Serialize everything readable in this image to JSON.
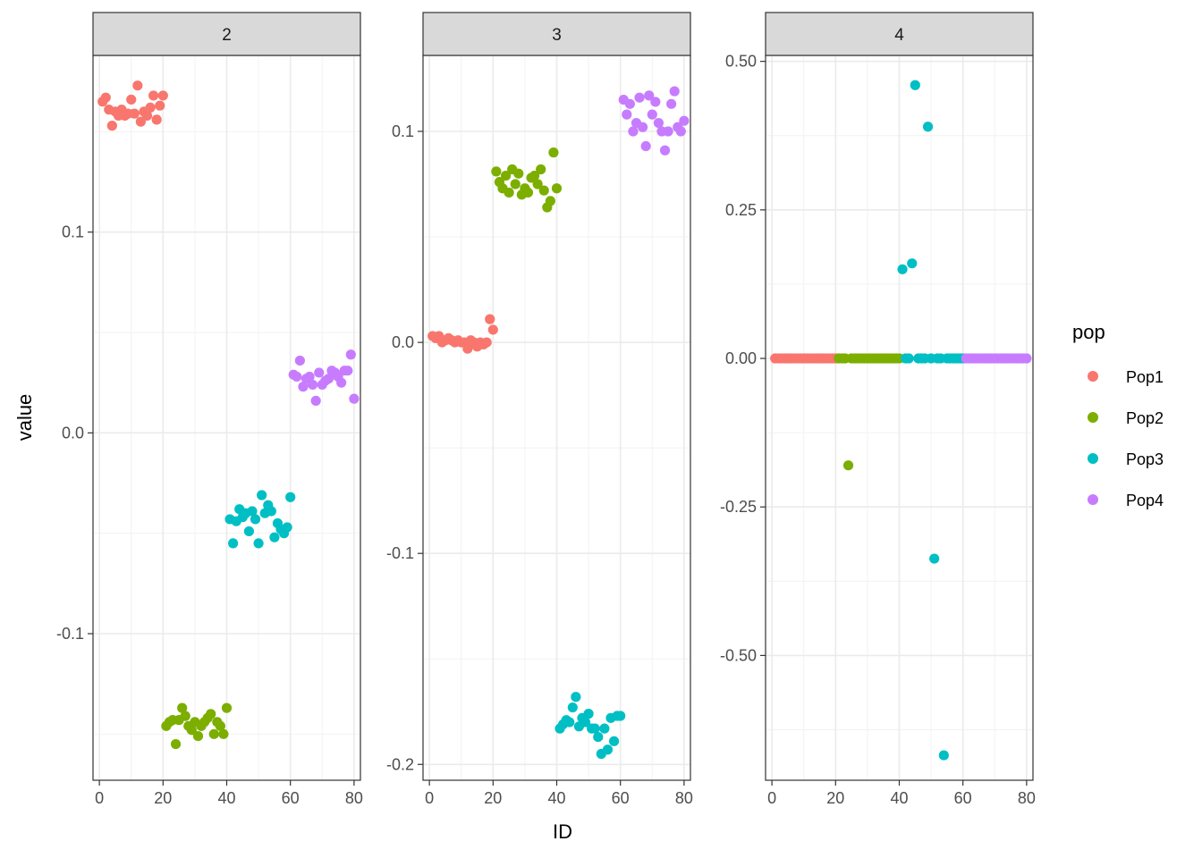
{
  "chart_data": {
    "type": "scatter",
    "facet_var": "variable",
    "xlabel": "ID",
    "ylabel": "value",
    "legend": {
      "title": "pop",
      "position": "right",
      "entries": [
        {
          "name": "Pop1",
          "color": "#F8766D"
        },
        {
          "name": "Pop2",
          "color": "#7CAE00"
        },
        {
          "name": "Pop3",
          "color": "#00BFC4"
        },
        {
          "name": "Pop4",
          "color": "#C77CFF"
        }
      ]
    },
    "xlim": [
      -2,
      82
    ],
    "x_ticks": [
      0,
      20,
      40,
      60,
      80
    ],
    "x_tick_labels": [
      "0",
      "20",
      "40",
      "60",
      "80"
    ],
    "panels": [
      {
        "strip": "2",
        "ylim": [
          -0.173,
          0.188
        ],
        "y_ticks": [
          0.1,
          0.0,
          -0.1
        ],
        "y_tick_labels": [
          "0.1",
          "0.0",
          "-0.1"
        ],
        "series": [
          {
            "name": "Pop1",
            "x": [
              1,
              2,
              3,
              4,
              5,
              6,
              7,
              8,
              9,
              10,
              11,
              12,
              13,
              14,
              15,
              16,
              17,
              18,
              19,
              20
            ],
            "y": [
              0.165,
              0.167,
              0.161,
              0.153,
              0.16,
              0.158,
              0.161,
              0.158,
              0.159,
              0.166,
              0.159,
              0.173,
              0.155,
              0.16,
              0.158,
              0.162,
              0.168,
              0.156,
              0.163,
              0.168
            ]
          },
          {
            "name": "Pop2",
            "x": [
              21,
              22,
              23,
              24,
              25,
              26,
              27,
              28,
              29,
              30,
              31,
              32,
              33,
              34,
              35,
              36,
              37,
              38,
              39,
              40
            ],
            "y": [
              -0.146,
              -0.144,
              -0.143,
              -0.155,
              -0.143,
              -0.137,
              -0.141,
              -0.146,
              -0.148,
              -0.144,
              -0.151,
              -0.146,
              -0.144,
              -0.142,
              -0.14,
              -0.15,
              -0.144,
              -0.146,
              -0.15,
              -0.137
            ]
          },
          {
            "name": "Pop3",
            "x": [
              41,
              42,
              43,
              44,
              45,
              46,
              47,
              48,
              49,
              50,
              51,
              52,
              53,
              54,
              55,
              56,
              57,
              58,
              59,
              60
            ],
            "y": [
              -0.043,
              -0.055,
              -0.044,
              -0.038,
              -0.042,
              -0.04,
              -0.049,
              -0.039,
              -0.043,
              -0.055,
              -0.031,
              -0.04,
              -0.036,
              -0.039,
              -0.052,
              -0.045,
              -0.048,
              -0.05,
              -0.047,
              -0.032
            ]
          },
          {
            "name": "Pop4",
            "x": [
              61,
              62,
              63,
              64,
              65,
              66,
              67,
              68,
              69,
              70,
              71,
              72,
              73,
              74,
              75,
              76,
              77,
              78,
              79,
              80
            ],
            "y": [
              0.029,
              0.028,
              0.036,
              0.023,
              0.027,
              0.028,
              0.024,
              0.016,
              0.03,
              0.024,
              0.026,
              0.027,
              0.031,
              0.03,
              0.028,
              0.025,
              0.031,
              0.031,
              0.039,
              0.017
            ]
          }
        ]
      },
      {
        "strip": "3",
        "ylim": [
          -0.2075,
          0.136
        ],
        "y_ticks": [
          0.1,
          0.0,
          -0.1,
          -0.2
        ],
        "y_tick_labels": [
          "0.1",
          "0.0",
          "-0.1",
          "-0.2"
        ],
        "series": [
          {
            "name": "Pop1",
            "x": [
              1,
              2,
              3,
              4,
              5,
              6,
              7,
              8,
              9,
              10,
              11,
              12,
              13,
              14,
              15,
              16,
              17,
              18,
              19,
              20
            ],
            "y": [
              0.003,
              0.002,
              0.003,
              0.0,
              0.001,
              0.002,
              0.001,
              0.0,
              0.001,
              0.0,
              0.0,
              -0.003,
              0.001,
              0.0,
              -0.002,
              0.0,
              -0.001,
              0.0,
              0.011,
              0.006
            ]
          },
          {
            "name": "Pop2",
            "x": [
              21,
              22,
              23,
              24,
              25,
              26,
              27,
              28,
              29,
              30,
              31,
              32,
              33,
              34,
              35,
              36,
              37,
              38,
              39,
              40
            ],
            "y": [
              0.081,
              0.076,
              0.073,
              0.079,
              0.071,
              0.082,
              0.075,
              0.08,
              0.07,
              0.073,
              0.071,
              0.078,
              0.079,
              0.075,
              0.082,
              0.072,
              0.064,
              0.067,
              0.09,
              0.073
            ]
          },
          {
            "name": "Pop3",
            "x": [
              41,
              42,
              43,
              44,
              45,
              46,
              47,
              48,
              49,
              50,
              51,
              52,
              53,
              54,
              55,
              56,
              57,
              58,
              59,
              60
            ],
            "y": [
              -0.183,
              -0.181,
              -0.179,
              -0.18,
              -0.173,
              -0.168,
              -0.182,
              -0.178,
              -0.18,
              -0.176,
              -0.183,
              -0.183,
              -0.187,
              -0.195,
              -0.183,
              -0.193,
              -0.178,
              -0.189,
              -0.177,
              -0.177
            ]
          },
          {
            "name": "Pop4",
            "x": [
              61,
              62,
              63,
              64,
              65,
              66,
              67,
              68,
              69,
              70,
              71,
              72,
              73,
              74,
              75,
              76,
              77,
              78,
              79,
              80
            ],
            "y": [
              0.115,
              0.108,
              0.113,
              0.1,
              0.104,
              0.116,
              0.102,
              0.093,
              0.117,
              0.108,
              0.114,
              0.104,
              0.1,
              0.091,
              0.1,
              0.113,
              0.119,
              0.102,
              0.1,
              0.105
            ]
          }
        ]
      },
      {
        "strip": "4",
        "ylim": [
          -0.71,
          0.51
        ],
        "y_ticks": [
          0.5,
          0.25,
          0.0,
          -0.25,
          -0.5
        ],
        "y_tick_labels": [
          "0.50",
          "0.25",
          "0.00",
          "-0.25",
          "-0.50"
        ],
        "series": [
          {
            "name": "Pop1",
            "x": [
              1,
              2,
              3,
              4,
              5,
              6,
              7,
              8,
              9,
              10,
              11,
              12,
              13,
              14,
              15,
              16,
              17,
              18,
              19,
              20
            ],
            "y": [
              0,
              0,
              0,
              0,
              0,
              0,
              0,
              0,
              0,
              0,
              0,
              0,
              0,
              0,
              0,
              0,
              0,
              0,
              0,
              0
            ]
          },
          {
            "name": "Pop2",
            "x": [
              21,
              22,
              23,
              24,
              25,
              26,
              27,
              28,
              29,
              30,
              31,
              32,
              33,
              34,
              35,
              36,
              37,
              38,
              39,
              40
            ],
            "y": [
              0,
              0,
              0,
              -0.18,
              0,
              0,
              0,
              0,
              0,
              0,
              0,
              0,
              0,
              0,
              0,
              0,
              0,
              0,
              0,
              0
            ]
          },
          {
            "name": "Pop3",
            "x": [
              41,
              42,
              43,
              44,
              45,
              46,
              47,
              48,
              49,
              50,
              51,
              52,
              53,
              54,
              55,
              56,
              57,
              58,
              59,
              60
            ],
            "y": [
              0.15,
              0,
              0,
              0.16,
              0.46,
              0,
              0,
              0,
              0.39,
              0,
              -0.337,
              0,
              0,
              -0.668,
              0,
              0,
              0,
              0,
              0,
              0
            ]
          },
          {
            "name": "Pop4",
            "x": [
              61,
              62,
              63,
              64,
              65,
              66,
              67,
              68,
              69,
              70,
              71,
              72,
              73,
              74,
              75,
              76,
              77,
              78,
              79,
              80
            ],
            "y": [
              0,
              0,
              0,
              0,
              0,
              0,
              0,
              0,
              0,
              0,
              0,
              0,
              0,
              0,
              0,
              0,
              0,
              0,
              0,
              0
            ]
          }
        ]
      }
    ]
  }
}
